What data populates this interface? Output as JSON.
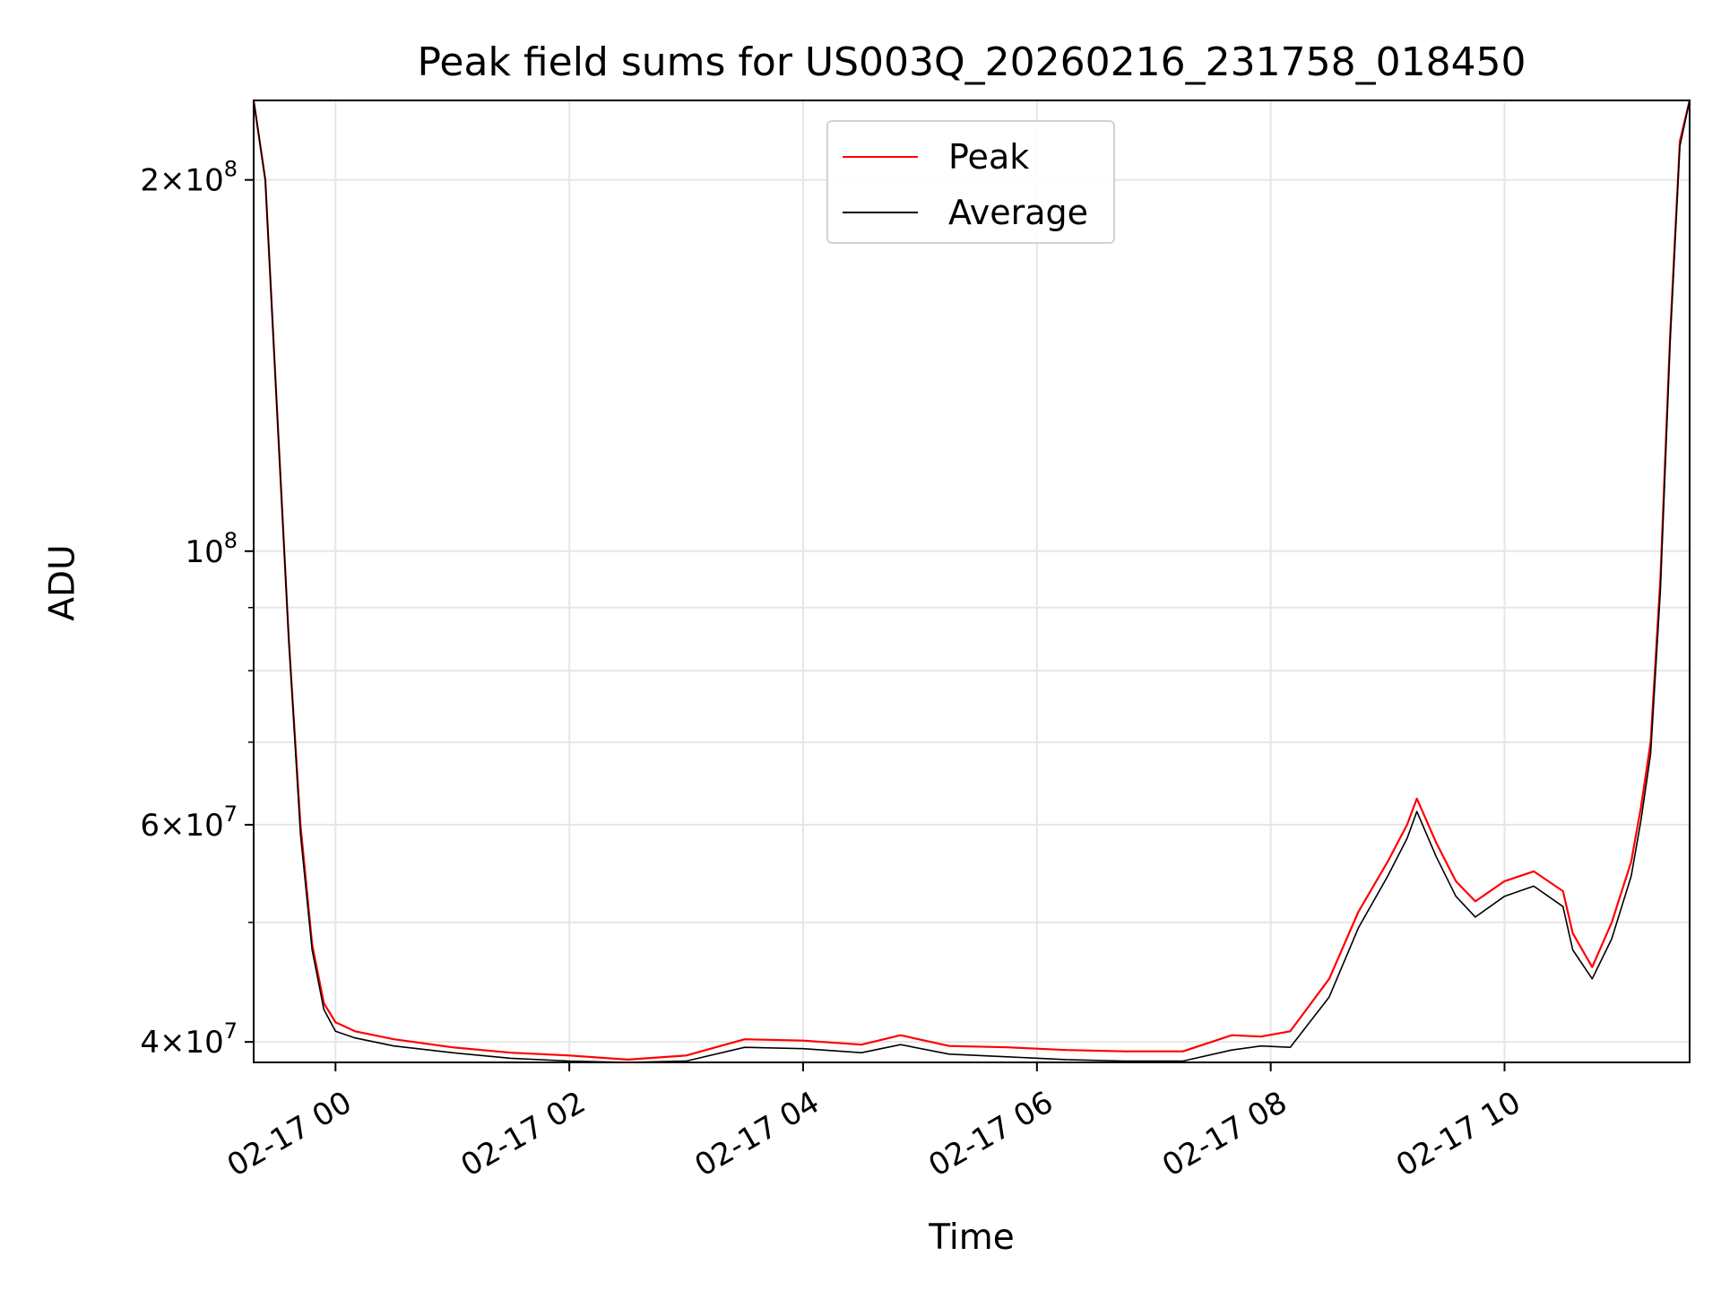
{
  "chart_data": {
    "type": "line",
    "title": "Peak field sums for US003Q_20260216_231758_018450",
    "xlabel": "Time",
    "ylabel": "ADU",
    "y_scale": "log",
    "xlim": [
      "02-16 23:18",
      "02-17 11:35"
    ],
    "ylim": [
      38500000,
      232000000
    ],
    "grid": true,
    "legend_placement": "upper center",
    "x_ticks": [
      "02-17 00",
      "02-17 02",
      "02-17 04",
      "02-17 06",
      "02-17 08",
      "02-17 10"
    ],
    "y_ticks": [
      {
        "value": 40000000,
        "base": "4",
        "exp": "7"
      },
      {
        "value": 60000000,
        "base": "6",
        "exp": "7"
      },
      {
        "value": 100000000,
        "base": "",
        "exp": "8"
      },
      {
        "value": 200000000,
        "base": "2",
        "exp": "8"
      }
    ],
    "y_minor_ticks": [
      50000000,
      70000000,
      80000000,
      90000000
    ],
    "x": [
      "02-16 23:18",
      "02-16 23:24",
      "02-16 23:30",
      "02-16 23:36",
      "02-16 23:42",
      "02-16 23:48",
      "02-16 23:54",
      "02-17 00:00",
      "02-17 00:10",
      "02-17 00:30",
      "02-17 01:00",
      "02-17 01:30",
      "02-17 02:00",
      "02-17 02:30",
      "02-17 03:00",
      "02-17 03:30",
      "02-17 04:00",
      "02-17 04:30",
      "02-17 04:50",
      "02-17 05:15",
      "02-17 05:45",
      "02-17 06:15",
      "02-17 06:45",
      "02-17 07:15",
      "02-17 07:40",
      "02-17 07:55",
      "02-17 08:10",
      "02-17 08:30",
      "02-17 08:45",
      "02-17 09:00",
      "02-17 09:10",
      "02-17 09:15",
      "02-17 09:25",
      "02-17 09:35",
      "02-17 09:45",
      "02-17 10:00",
      "02-17 10:15",
      "02-17 10:30",
      "02-17 10:35",
      "02-17 10:45",
      "02-17 10:55",
      "02-17 11:05",
      "02-17 11:10",
      "02-17 11:15",
      "02-17 11:20",
      "02-17 11:25",
      "02-17 11:30",
      "02-17 11:35"
    ],
    "series": [
      {
        "name": "Peak",
        "color": "#ff0000",
        "values": [
          232000000,
          200000000,
          130000000,
          85000000,
          60000000,
          48000000,
          43000000,
          41500000,
          40800000,
          40200000,
          39600000,
          39200000,
          39000000,
          38700000,
          39000000,
          40200000,
          40100000,
          39800000,
          40500000,
          39700000,
          39600000,
          39400000,
          39300000,
          39300000,
          40500000,
          40400000,
          40800000,
          45000000,
          51000000,
          56000000,
          60000000,
          63000000,
          58000000,
          54000000,
          52000000,
          54000000,
          55000000,
          53000000,
          49000000,
          46000000,
          50000000,
          56000000,
          62000000,
          70000000,
          95000000,
          150000000,
          215000000,
          232000000
        ]
      },
      {
        "name": "Average",
        "color": "#000000",
        "values": [
          232000000,
          200000000,
          130000000,
          85000000,
          59000000,
          47500000,
          42500000,
          40800000,
          40300000,
          39700000,
          39200000,
          38800000,
          38600000,
          38500000,
          38600000,
          39600000,
          39500000,
          39200000,
          39800000,
          39100000,
          38900000,
          38700000,
          38600000,
          38600000,
          39400000,
          39700000,
          39600000,
          43500000,
          49500000,
          54500000,
          58500000,
          61500000,
          56500000,
          52500000,
          50500000,
          52500000,
          53500000,
          51500000,
          47500000,
          45000000,
          48500000,
          54500000,
          60500000,
          68500000,
          93000000,
          148000000,
          213000000,
          232000000
        ]
      }
    ]
  }
}
